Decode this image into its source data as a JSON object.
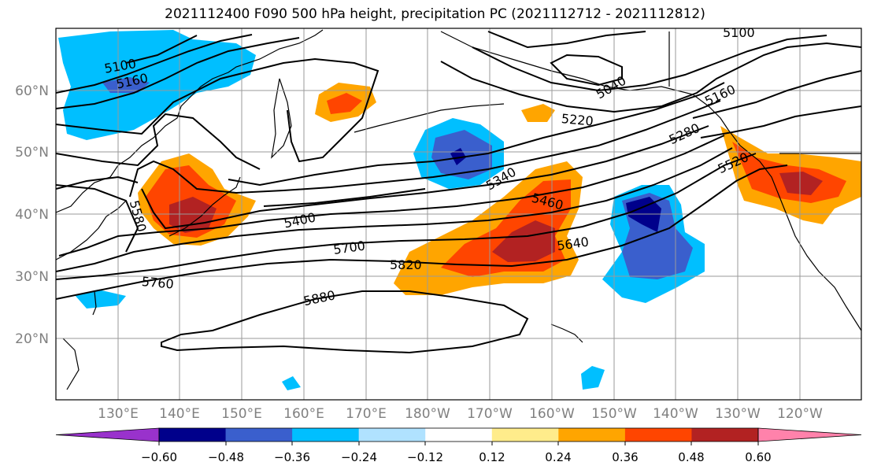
{
  "title": "2021112400 F090 500 hPa height, precipitation PC (2021112712 - 2021112812)",
  "map": {
    "lat_labels": [
      "60°N",
      "50°N",
      "40°N",
      "30°N",
      "20°N"
    ],
    "lon_labels": [
      "130°E",
      "140°E",
      "150°E",
      "160°E",
      "170°E",
      "180°W",
      "170°W",
      "160°W",
      "150°W",
      "140°W",
      "130°W",
      "120°W"
    ],
    "extent": {
      "lon_min": 120,
      "lon_max": 250,
      "lat_min": 10,
      "lat_max": 70
    },
    "contour_labels": [
      "5100",
      "5160",
      "5100",
      "5040",
      "5160",
      "5220",
      "5280",
      "5520",
      "5340",
      "5460",
      "5400",
      "5580",
      "5700",
      "5640",
      "5820",
      "5760",
      "5880"
    ],
    "contour_color": "#000000",
    "grid_color": "#9a9a9a"
  },
  "colorbar": {
    "ticks": [
      "−0.60",
      "−0.48",
      "−0.36",
      "−0.24",
      "−0.12",
      "0.12",
      "0.24",
      "0.36",
      "0.48",
      "0.60"
    ],
    "colors": [
      "#9932cc",
      "#00008b",
      "#3a5fcd",
      "#00bfff",
      "#b0e2ff",
      "#ffffff",
      "#ffec8b",
      "#ffa500",
      "#ff4500",
      "#b22222",
      "#ff82ab"
    ]
  }
}
